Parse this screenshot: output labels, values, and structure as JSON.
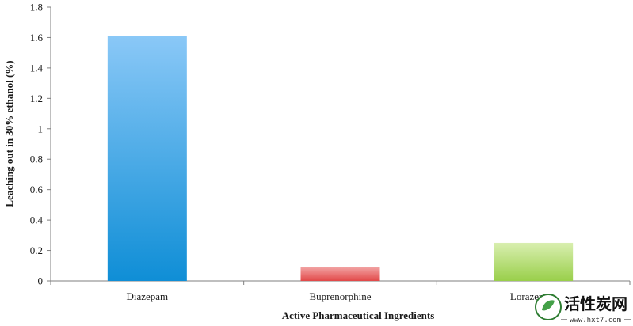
{
  "chart_data": {
    "type": "bar",
    "categories": [
      "Diazepam",
      "Buprenorphine",
      "Lorazepam"
    ],
    "values": [
      1.61,
      0.09,
      0.25
    ],
    "xlabel": "Active Pharmaceutical Ingredients",
    "ylabel": "Leaching out in 30% ethanol (%)",
    "ylim": [
      0,
      1.8
    ],
    "yticks": [
      "0",
      "0.2",
      "0.4",
      "0.6",
      "0.8",
      "1",
      "1.2",
      "1.4",
      "1.6",
      "1.8"
    ],
    "grid": false,
    "legend": "none",
    "colors": {
      "Diazepam": [
        "#8ac8f7",
        "#0f8ed6"
      ],
      "Buprenorphine": [
        "#f2a3a3",
        "#e24848"
      ],
      "Lorazepam": [
        "#d9efb0",
        "#99cf4a"
      ]
    }
  },
  "watermark": {
    "text": "活性炭网",
    "url": "www.hxt7.com"
  }
}
